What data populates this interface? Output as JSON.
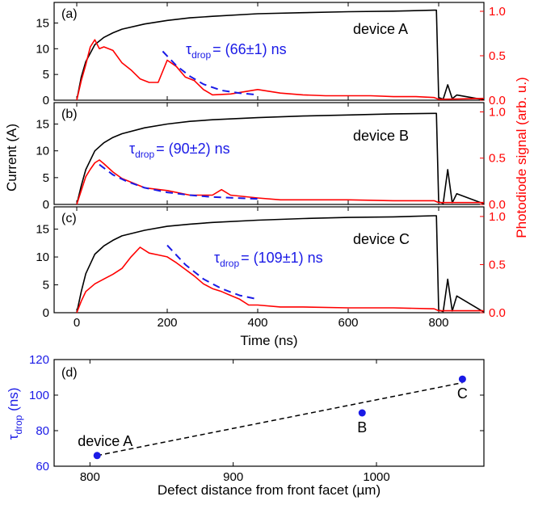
{
  "chart_data": [
    {
      "panel": "(a)",
      "type": "line",
      "device_label": "device A",
      "tau_text": {
        "pre": "τ",
        "sub": "drop",
        "post": "= (66±1) ns"
      },
      "xlim": [
        -50,
        900
      ],
      "ylim_left": [
        0,
        19
      ],
      "ylim_right": [
        0,
        1.1
      ],
      "x_ticks": [
        0,
        200,
        400,
        600,
        800
      ],
      "y_ticks_left": [
        0,
        5,
        10,
        15
      ],
      "y_ticks_right": [
        0.0,
        0.5,
        1.0
      ],
      "tau_ns": 66,
      "tau_err_ns": 1,
      "series": [
        {
          "axis": "left",
          "color": "#000000",
          "x": [
            0,
            10,
            20,
            40,
            60,
            80,
            100,
            150,
            200,
            250,
            300,
            400,
            500,
            600,
            700,
            790,
            795,
            800,
            810,
            820,
            830,
            840,
            900
          ],
          "values": [
            0,
            4.5,
            7.5,
            10.8,
            12.2,
            13.1,
            13.8,
            14.8,
            15.5,
            16,
            16.3,
            16.8,
            17,
            17.2,
            17.3,
            17.5,
            17.5,
            0.5,
            0.2,
            3,
            0.3,
            1,
            0.1
          ]
        },
        {
          "axis": "right",
          "color": "#ff0000",
          "x": [
            0,
            10,
            20,
            30,
            40,
            50,
            60,
            80,
            100,
            120,
            140,
            160,
            180,
            200,
            220,
            240,
            260,
            280,
            300,
            340,
            400,
            450,
            500,
            550,
            600,
            650,
            700,
            750,
            790,
            800,
            900
          ],
          "values": [
            0,
            0.22,
            0.4,
            0.6,
            0.68,
            0.58,
            0.6,
            0.56,
            0.42,
            0.34,
            0.24,
            0.2,
            0.2,
            0.45,
            0.38,
            0.26,
            0.22,
            0.12,
            0.06,
            0.07,
            0.12,
            0.08,
            0.06,
            0.05,
            0.05,
            0.05,
            0.04,
            0.04,
            0.03,
            0.01,
            0.02
          ]
        },
        {
          "axis": "right",
          "color": "#1a1ae6",
          "dashed": true,
          "x": [
            190,
            220,
            250,
            280,
            320,
            360,
            400
          ],
          "values": [
            0.55,
            0.39,
            0.27,
            0.18,
            0.11,
            0.08,
            0.06
          ]
        }
      ]
    },
    {
      "panel": "(b)",
      "type": "line",
      "device_label": "device B",
      "tau_text": {
        "pre": "τ",
        "sub": "drop",
        "post": "= (90±2) ns"
      },
      "xlim": [
        -50,
        900
      ],
      "ylim_left": [
        0,
        19
      ],
      "ylim_right": [
        0,
        1.1
      ],
      "x_ticks": [
        0,
        200,
        400,
        600,
        800
      ],
      "y_ticks_left": [
        0,
        5,
        10,
        15
      ],
      "y_ticks_right": [
        0.0,
        0.5,
        1.0
      ],
      "tau_ns": 90,
      "tau_err_ns": 2,
      "series": [
        {
          "axis": "left",
          "color": "#000000",
          "x": [
            0,
            10,
            20,
            40,
            60,
            80,
            100,
            150,
            200,
            250,
            300,
            400,
            500,
            600,
            700,
            790,
            795,
            800,
            810,
            820,
            830,
            840,
            900
          ],
          "values": [
            0,
            3.5,
            6.5,
            10,
            11.5,
            12.5,
            13.2,
            14.3,
            15,
            15.5,
            15.8,
            16.2,
            16.5,
            16.7,
            16.9,
            17,
            17,
            0.5,
            0.2,
            6.5,
            0.3,
            2,
            0.1
          ]
        },
        {
          "axis": "right",
          "color": "#ff0000",
          "x": [
            0,
            10,
            20,
            30,
            40,
            50,
            60,
            80,
            100,
            150,
            200,
            250,
            300,
            320,
            340,
            400,
            450,
            500,
            600,
            700,
            790,
            800,
            900
          ],
          "values": [
            0,
            0.15,
            0.3,
            0.38,
            0.45,
            0.48,
            0.44,
            0.35,
            0.28,
            0.18,
            0.15,
            0.1,
            0.1,
            0.16,
            0.1,
            0.07,
            0.05,
            0.05,
            0.05,
            0.04,
            0.04,
            0.02,
            0.02
          ]
        },
        {
          "axis": "right",
          "color": "#1a1ae6",
          "dashed": true,
          "x": [
            50,
            80,
            110,
            150,
            200,
            250,
            300,
            350,
            400
          ],
          "values": [
            0.43,
            0.32,
            0.25,
            0.18,
            0.13,
            0.1,
            0.08,
            0.07,
            0.06
          ]
        }
      ]
    },
    {
      "panel": "(c)",
      "type": "line",
      "device_label": "device C",
      "tau_text": {
        "pre": "τ",
        "sub": "drop",
        "post": "= (109±1) ns"
      },
      "xlim": [
        -50,
        900
      ],
      "ylim_left": [
        0,
        19
      ],
      "ylim_right": [
        0,
        1.1
      ],
      "x_ticks": [
        0,
        200,
        400,
        600,
        800
      ],
      "y_ticks_left": [
        0,
        5,
        10,
        15
      ],
      "y_ticks_right": [
        0.0,
        0.5,
        1.0
      ],
      "tau_ns": 109,
      "tau_err_ns": 1,
      "series": [
        {
          "axis": "left",
          "color": "#000000",
          "x": [
            0,
            10,
            20,
            40,
            60,
            80,
            100,
            150,
            200,
            250,
            300,
            400,
            500,
            600,
            700,
            790,
            795,
            800,
            810,
            820,
            830,
            840,
            900
          ],
          "values": [
            0,
            3.8,
            7,
            10.5,
            12,
            13,
            13.8,
            14.8,
            15.5,
            15.9,
            16.2,
            16.6,
            16.9,
            17.1,
            17.2,
            17.4,
            17.4,
            0.5,
            0.2,
            6,
            0.3,
            3,
            0.1
          ]
        },
        {
          "axis": "right",
          "color": "#ff0000",
          "x": [
            0,
            10,
            20,
            40,
            60,
            80,
            100,
            120,
            140,
            160,
            180,
            200,
            220,
            240,
            260,
            280,
            300,
            320,
            340,
            360,
            380,
            400,
            450,
            500,
            600,
            700,
            790,
            800,
            900
          ],
          "values": [
            0,
            0.12,
            0.22,
            0.3,
            0.35,
            0.4,
            0.46,
            0.58,
            0.68,
            0.62,
            0.6,
            0.58,
            0.52,
            0.45,
            0.38,
            0.3,
            0.25,
            0.22,
            0.18,
            0.14,
            0.08,
            0.08,
            0.06,
            0.06,
            0.05,
            0.05,
            0.04,
            0.02,
            0.02
          ]
        },
        {
          "axis": "right",
          "color": "#1a1ae6",
          "dashed": true,
          "x": [
            200,
            240,
            280,
            320,
            360,
            400
          ],
          "values": [
            0.7,
            0.5,
            0.35,
            0.25,
            0.18,
            0.14
          ]
        }
      ]
    },
    {
      "panel": "(d)",
      "type": "scatter",
      "xlabel": "Defect distance from front facet (µm)",
      "ylabel": {
        "pre": "τ",
        "sub": "drop",
        "post": " (ns)"
      },
      "xlim": [
        775,
        1075
      ],
      "ylim": [
        60,
        120
      ],
      "x_ticks": [
        800,
        900,
        1000
      ],
      "y_ticks": [
        60,
        80,
        100,
        120
      ],
      "points": [
        {
          "label": "device A",
          "x": 805,
          "y": 66
        },
        {
          "label": "B",
          "x": 990,
          "y": 90
        },
        {
          "label": "C",
          "x": 1060,
          "y": 109
        }
      ],
      "fit_line": {
        "x": [
          805,
          1060
        ],
        "y": [
          66,
          107
        ],
        "color": "#000000",
        "dashed": true
      },
      "marker_color": "#1a1ae6"
    }
  ],
  "shared_axes": {
    "xlabel_top": "Time (ns)",
    "ylabel_left": "Current (A)",
    "ylabel_right": "Photodiode signal (arb. u.)"
  }
}
